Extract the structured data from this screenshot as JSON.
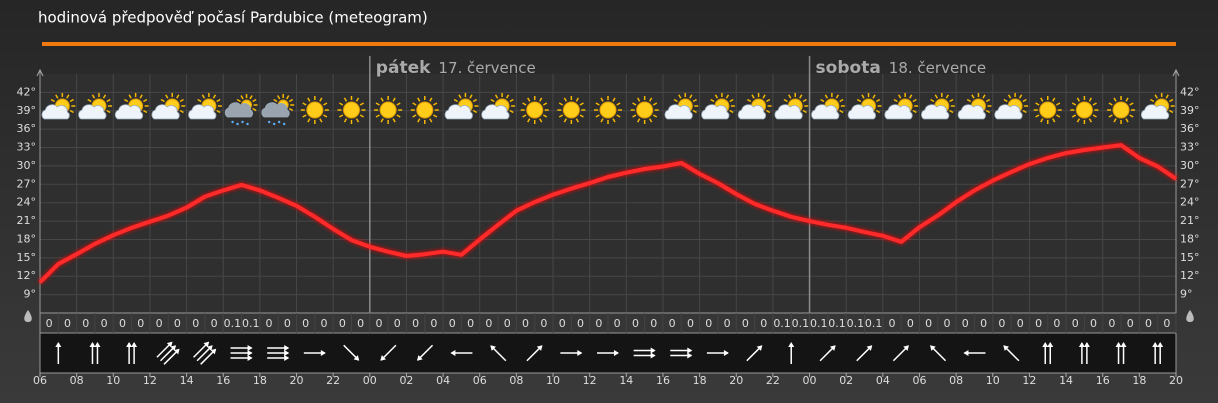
{
  "chart_data": {
    "type": "line",
    "title": "hodinová předpověď počasí Pardubice (meteogram)",
    "days": [
      {
        "name": "pátek",
        "date": "17. července"
      },
      {
        "name": "sobota",
        "date": "18. července"
      }
    ],
    "series": [
      {
        "name": "teplota",
        "color": "#ff2a2a",
        "values": [
          11,
          14,
          15.6,
          17.3,
          18.7,
          19.9,
          20.9,
          21.9,
          23.2,
          25,
          26,
          26.9,
          26,
          24.8,
          23.5,
          21.7,
          19.7,
          17.9,
          16.8,
          16,
          15.3,
          15.6,
          16,
          15.5,
          18,
          20.4,
          22.7,
          24.1,
          25.3,
          26.3,
          27.2,
          28.2,
          28.9,
          29.5,
          29.9,
          30.5,
          28.7,
          27.2,
          25.4,
          23.8,
          22.7,
          21.7,
          21,
          20.4,
          19.9,
          19.2,
          18.6,
          17.6,
          20,
          21.9,
          24.1,
          26,
          27.6,
          29,
          30.3,
          31.3,
          32.1,
          32.6,
          33,
          33.4,
          31.3,
          29.9,
          27.9
        ]
      }
    ],
    "precipitation": {
      "values": [
        0,
        0,
        0,
        0,
        0,
        0,
        0,
        0,
        0,
        0,
        0.1,
        0.1,
        0,
        0,
        0,
        0,
        0,
        0,
        0,
        0,
        0,
        0,
        0,
        0,
        0,
        0,
        0,
        0,
        0,
        0,
        0,
        0,
        0,
        0,
        0,
        0,
        0,
        0,
        0,
        0,
        0.1,
        0.1,
        0.1,
        0.1,
        0.1,
        0.1,
        0,
        0,
        0,
        0,
        0,
        0,
        0,
        0,
        0,
        0,
        0,
        0,
        0,
        0,
        0,
        0
      ]
    },
    "xlim": [
      0,
      62
    ],
    "xticks": [
      {
        "value": 0,
        "label": "06"
      },
      {
        "value": 2,
        "label": "08"
      },
      {
        "value": 4,
        "label": "10"
      },
      {
        "value": 6,
        "label": "12"
      },
      {
        "value": 8,
        "label": "14"
      },
      {
        "value": 10,
        "label": "16"
      },
      {
        "value": 12,
        "label": "18"
      },
      {
        "value": 14,
        "label": "20"
      },
      {
        "value": 16,
        "label": "22"
      },
      {
        "value": 18,
        "label": "00"
      },
      {
        "value": 20,
        "label": "02"
      },
      {
        "value": 22,
        "label": "04"
      },
      {
        "value": 24,
        "label": "06"
      },
      {
        "value": 26,
        "label": "08"
      },
      {
        "value": 28,
        "label": "10"
      },
      {
        "value": 30,
        "label": "12"
      },
      {
        "value": 32,
        "label": "14"
      },
      {
        "value": 34,
        "label": "16"
      },
      {
        "value": 36,
        "label": "18"
      },
      {
        "value": 38,
        "label": "20"
      },
      {
        "value": 40,
        "label": "22"
      },
      {
        "value": 42,
        "label": "00"
      },
      {
        "value": 44,
        "label": "02"
      },
      {
        "value": 46,
        "label": "04"
      },
      {
        "value": 48,
        "label": "06"
      },
      {
        "value": 50,
        "label": "08"
      },
      {
        "value": 52,
        "label": "10"
      },
      {
        "value": 54,
        "label": "12"
      },
      {
        "value": 56,
        "label": "14"
      },
      {
        "value": 58,
        "label": "16"
      },
      {
        "value": 60,
        "label": "18"
      },
      {
        "value": 62,
        "label": "20"
      }
    ],
    "ylim": [
      6,
      45
    ],
    "yticks": [
      {
        "value": 9,
        "label": "9°"
      },
      {
        "value": 12,
        "label": "12°"
      },
      {
        "value": 15,
        "label": "15°"
      },
      {
        "value": 18,
        "label": "18°"
      },
      {
        "value": 21,
        "label": "21°"
      },
      {
        "value": 24,
        "label": "24°"
      },
      {
        "value": 27,
        "label": "27°"
      },
      {
        "value": 30,
        "label": "30°"
      },
      {
        "value": 33,
        "label": "33°"
      },
      {
        "value": 36,
        "label": "36°"
      },
      {
        "value": 39,
        "label": "39°"
      },
      {
        "value": 42,
        "label": "42°"
      }
    ],
    "grid": true
  }
}
